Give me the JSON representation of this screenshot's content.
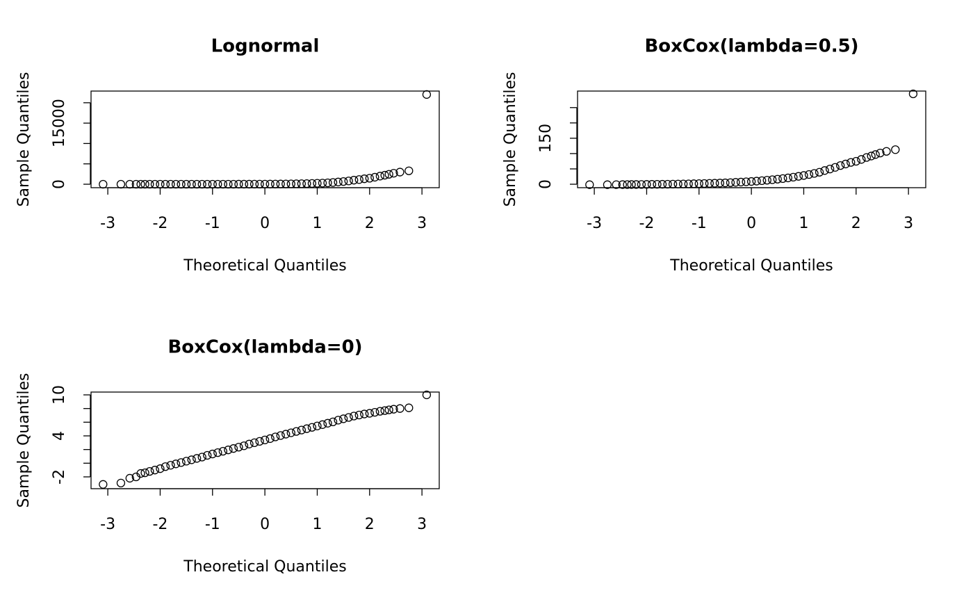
{
  "chart_data": [
    {
      "type": "scatter",
      "title": "Lognormal",
      "xlabel": "Theoretical Quantiles",
      "ylabel": "Sample Quantiles",
      "x": [
        -3.09,
        -2.75,
        -2.58,
        -2.46,
        -2.37,
        -2.29,
        -2.2,
        -2.1,
        -2.0,
        -1.9,
        -1.8,
        -1.7,
        -1.6,
        -1.5,
        -1.4,
        -1.3,
        -1.2,
        -1.1,
        -1.0,
        -0.9,
        -0.8,
        -0.7,
        -0.6,
        -0.5,
        -0.4,
        -0.3,
        -0.2,
        -0.1,
        0,
        0.1,
        0.2,
        0.3,
        0.4,
        0.5,
        0.6,
        0.7,
        0.8,
        0.9,
        1.0,
        1.1,
        1.2,
        1.3,
        1.4,
        1.5,
        1.6,
        1.7,
        1.8,
        1.9,
        2.0,
        2.1,
        2.2,
        2.29,
        2.37,
        2.46,
        2.58,
        2.75,
        3.09
      ],
      "values": [
        0.05,
        0.06,
        0.11,
        0.14,
        0.22,
        0.25,
        0.3,
        0.37,
        0.45,
        0.61,
        0.74,
        0.9,
        1.1,
        1.35,
        1.65,
        2.0,
        2.5,
        3.2,
        3.9,
        4.7,
        5.8,
        7.0,
        8.6,
        10.5,
        12.8,
        16.4,
        20.1,
        24.5,
        30,
        36.6,
        47,
        57,
        70,
        86,
        105,
        128,
        156,
        191,
        233,
        284,
        347,
        424,
        545,
        665,
        812,
        992,
        1153,
        1339,
        1480,
        1720,
        1998,
        2208,
        2440,
        2697,
        2981,
        3294,
        22026
      ],
      "xlim": [
        -3.32,
        3.33
      ],
      "ylim": [
        -850,
        22870
      ],
      "xticks": [
        -3,
        -2,
        -1,
        0,
        1,
        2,
        3
      ],
      "yticks": [
        0,
        5000,
        10000,
        15000,
        20000
      ]
    },
    {
      "type": "scatter",
      "title": "BoxCox(lambda=0.5)",
      "xlabel": "Theoretical Quantiles",
      "ylabel": "Sample Quantiles",
      "x": [
        -3.09,
        -2.75,
        -2.58,
        -2.46,
        -2.37,
        -2.29,
        -2.2,
        -2.1,
        -2.0,
        -1.9,
        -1.8,
        -1.7,
        -1.6,
        -1.5,
        -1.4,
        -1.3,
        -1.2,
        -1.1,
        -1.0,
        -0.9,
        -0.8,
        -0.7,
        -0.6,
        -0.5,
        -0.4,
        -0.3,
        -0.2,
        -0.1,
        0,
        0.1,
        0.2,
        0.3,
        0.4,
        0.5,
        0.6,
        0.7,
        0.8,
        0.9,
        1.0,
        1.1,
        1.2,
        1.3,
        1.4,
        1.5,
        1.6,
        1.7,
        1.8,
        1.9,
        2.0,
        2.1,
        2.2,
        2.29,
        2.37,
        2.46,
        2.58,
        2.75,
        3.09
      ],
      "values": [
        -1.55,
        -1.51,
        -1.34,
        -1.25,
        -1.06,
        -1.0,
        -0.9,
        -0.78,
        -0.66,
        -0.44,
        -0.28,
        -0.1,
        0.1,
        0.32,
        0.57,
        0.83,
        1.16,
        1.58,
        1.95,
        2.34,
        2.82,
        3.29,
        3.87,
        4.48,
        5.16,
        6.1,
        6.97,
        7.9,
        8.95,
        10.1,
        11.71,
        13.1,
        14.73,
        16.55,
        18.49,
        20.63,
        22.98,
        25.64,
        28.53,
        31.7,
        35.26,
        39.18,
        44.69,
        49.58,
        54.99,
        60.99,
        65.91,
        71.18,
        74.94,
        80.95,
        87.4,
        91.98,
        96.79,
        101.87,
        107.2,
        112.79,
        294.83
      ],
      "xlim": [
        -3.32,
        3.33
      ],
      "ylim": [
        -11.3,
        303.9
      ],
      "xticks": [
        -3,
        -2,
        -1,
        0,
        1,
        2,
        3
      ],
      "yticks": [
        0,
        50,
        100,
        150,
        200,
        250
      ]
    },
    {
      "type": "scatter",
      "title": "BoxCox(lambda=0)",
      "xlabel": "Theoretical Quantiles",
      "ylabel": "Sample Quantiles",
      "x": [
        -3.09,
        -2.75,
        -2.58,
        -2.46,
        -2.37,
        -2.29,
        -2.2,
        -2.1,
        -2.0,
        -1.9,
        -1.8,
        -1.7,
        -1.6,
        -1.5,
        -1.4,
        -1.3,
        -1.2,
        -1.1,
        -1.0,
        -0.9,
        -0.8,
        -0.7,
        -0.6,
        -0.5,
        -0.4,
        -0.3,
        -0.2,
        -0.1,
        0,
        0.1,
        0.2,
        0.3,
        0.4,
        0.5,
        0.6,
        0.7,
        0.8,
        0.9,
        1.0,
        1.1,
        1.2,
        1.3,
        1.4,
        1.5,
        1.6,
        1.7,
        1.8,
        1.9,
        2.0,
        2.1,
        2.2,
        2.29,
        2.37,
        2.46,
        2.58,
        2.75,
        3.09
      ],
      "values": [
        -3.1,
        -2.9,
        -2.2,
        -2.0,
        -1.5,
        -1.4,
        -1.2,
        -1.0,
        -0.8,
        -0.5,
        -0.3,
        -0.1,
        0.1,
        0.3,
        0.5,
        0.7,
        0.9,
        1.15,
        1.35,
        1.55,
        1.75,
        1.95,
        2.15,
        2.35,
        2.55,
        2.8,
        3.0,
        3.2,
        3.4,
        3.6,
        3.85,
        4.05,
        4.25,
        4.45,
        4.65,
        4.85,
        5.05,
        5.25,
        5.45,
        5.65,
        5.85,
        6.05,
        6.3,
        6.5,
        6.7,
        6.9,
        7.05,
        7.2,
        7.3,
        7.45,
        7.6,
        7.7,
        7.8,
        7.9,
        8.0,
        8.1,
        10.0
      ],
      "xlim": [
        -3.32,
        3.33
      ],
      "ylim": [
        -3.73,
        10.41
      ],
      "xticks": [
        -3,
        -2,
        -1,
        0,
        1,
        2,
        3
      ],
      "yticks": [
        -2,
        0,
        2,
        4,
        6,
        8,
        10
      ]
    }
  ]
}
